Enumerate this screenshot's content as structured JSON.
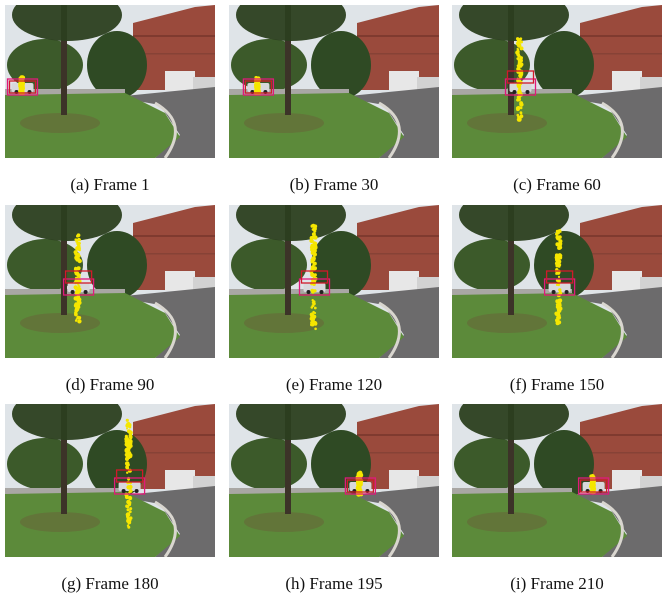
{
  "figure": {
    "panels": [
      {
        "id": "p1",
        "caption": "(a) Frame 1",
        "car_pos": 0.05,
        "spread": 0.05,
        "bar_height": 0.15,
        "gt_box": true,
        "pred_box": true
      },
      {
        "id": "p2",
        "caption": "(b) Frame 30",
        "car_pos": 0.12,
        "spread": 0.06,
        "bar_height": 0.15,
        "gt_box": true,
        "pred_box": true
      },
      {
        "id": "p3",
        "caption": "(c) Frame 60",
        "car_pos": 0.35,
        "spread": 0.07,
        "bar_height": 0.75,
        "gt_box": true,
        "pred_box": true
      },
      {
        "id": "p4",
        "caption": "(d) Frame 90",
        "car_pos": 0.38,
        "spread": 0.07,
        "bar_height": 0.8,
        "gt_box": true,
        "pred_box": true
      },
      {
        "id": "p5",
        "caption": "(e) Frame 120",
        "car_pos": 0.45,
        "spread": 0.07,
        "bar_height": 0.95,
        "gt_box": true,
        "pred_box": true
      },
      {
        "id": "p6",
        "caption": "(f) Frame 150",
        "car_pos": 0.58,
        "spread": 0.07,
        "bar_height": 0.85,
        "gt_box": true,
        "pred_box": true
      },
      {
        "id": "p7",
        "caption": "(g) Frame 180",
        "car_pos": 0.68,
        "spread": 0.08,
        "bar_height": 1.0,
        "gt_box": true,
        "pred_box": true
      },
      {
        "id": "p8",
        "caption": "(h) Frame 195",
        "car_pos": 0.72,
        "spread": 0.06,
        "bar_height": 0.2,
        "gt_box": true,
        "pred_box": true
      },
      {
        "id": "p9",
        "caption": "(i) Frame 210",
        "car_pos": 0.78,
        "spread": 0.05,
        "bar_height": 0.15,
        "gt_box": true,
        "pred_box": true
      }
    ],
    "colors": {
      "particles": "#f5e600",
      "gt_box": "#e01a7a",
      "pred_box": "#d11a2a"
    }
  }
}
